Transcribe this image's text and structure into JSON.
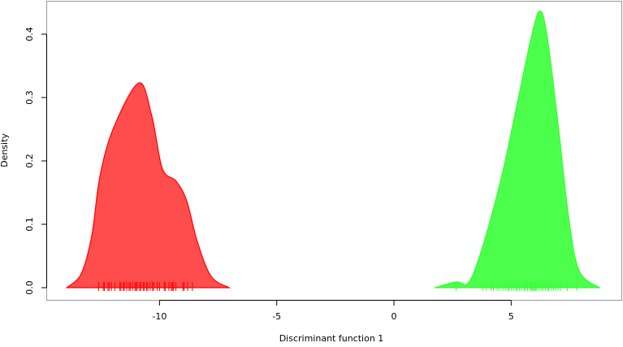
{
  "chart_data": {
    "type": "area",
    "title": "",
    "xlabel": "Discriminant function 1",
    "ylabel": "Density",
    "xlim": [
      -14.4,
      9.6
    ],
    "ylim": [
      -0.02,
      0.452
    ],
    "xticks": [
      -10,
      -5,
      0,
      5
    ],
    "xtick_labels": [
      "-10",
      "-5",
      "0",
      "5"
    ],
    "yticks": [
      0,
      0.1,
      0.2,
      0.3,
      0.4
    ],
    "ytick_labels": [
      "0.0",
      "0.1",
      "0.2",
      "0.3",
      "0.4"
    ],
    "grid": false,
    "legend": "none",
    "series": [
      {
        "color": "#ff0000",
        "fill": "#ff4d4d",
        "x": [
          -13.96,
          -13.34,
          -12.89,
          -12.54,
          -11.95,
          -10.88,
          -10.33,
          -9.88,
          -9.29,
          -8.84,
          -8.39,
          -7.8,
          -7.03
        ],
        "y": [
          0,
          0.022,
          0.082,
          0.176,
          0.253,
          0.323,
          0.271,
          0.188,
          0.168,
          0.137,
          0.073,
          0.018,
          0
        ],
        "rug": [
          -12.6,
          -12.4,
          -12.35,
          -12.2,
          -12.15,
          -12.05,
          -11.9,
          -11.7,
          -11.65,
          -11.55,
          -11.5,
          -11.4,
          -11.3,
          -11.25,
          -11.15,
          -11.05,
          -11.0,
          -10.95,
          -10.85,
          -10.8,
          -10.7,
          -10.65,
          -10.55,
          -10.5,
          -10.4,
          -10.3,
          -10.25,
          -10.1,
          -10.0,
          -9.8,
          -9.75,
          -9.6,
          -9.5,
          -9.45,
          -9.4,
          -9.3,
          -9.0,
          -8.95,
          -8.8,
          -8.6
        ]
      },
      {
        "color": "#33ff33",
        "fill": "#4dff4d",
        "x": [
          1.73,
          2.66,
          3.12,
          3.52,
          4.09,
          4.68,
          5.26,
          5.83,
          6.2,
          6.51,
          6.99,
          7.45,
          7.9,
          8.77
        ],
        "y": [
          0,
          0.009,
          0.006,
          0.035,
          0.104,
          0.189,
          0.291,
          0.39,
          0.436,
          0.403,
          0.262,
          0.112,
          0.027,
          0
        ],
        "rug": [
          2.65,
          3.8,
          3.95,
          4.15,
          4.25,
          4.4,
          4.5,
          4.65,
          4.75,
          4.85,
          4.9,
          5.0,
          5.1,
          5.2,
          5.25,
          5.35,
          5.45,
          5.55,
          5.6,
          5.7,
          5.8,
          5.85,
          5.9,
          5.95,
          6.0,
          6.05,
          6.1,
          6.2,
          6.3,
          6.35,
          6.45,
          6.55,
          6.6,
          6.7,
          6.8,
          6.9,
          7.0,
          7.1,
          7.4,
          7.8
        ]
      }
    ]
  }
}
